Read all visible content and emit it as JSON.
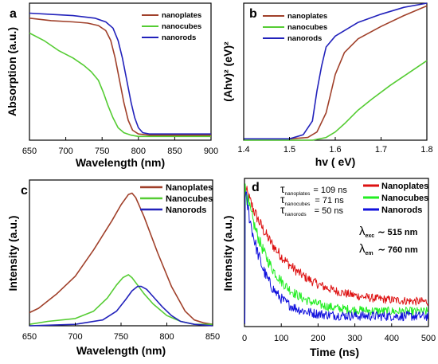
{
  "chart_data": [
    {
      "panel": "a",
      "type": "line",
      "xlabel": "Wavelength (nm)",
      "ylabel": "Absorption (a.u.)",
      "xlim": [
        650,
        900
      ],
      "ylim": [
        0,
        1.1
      ],
      "xticks": [
        "650",
        "700",
        "750",
        "800",
        "850",
        "900"
      ],
      "yticks_shown": false,
      "legend": "top-right",
      "legend_labels": [
        "nanoplates",
        "nanocubes",
        "nanorods"
      ],
      "series": [
        {
          "name": "nanoplates",
          "color": "#a0402a",
          "x": [
            650,
            680,
            710,
            730,
            745,
            755,
            762,
            768,
            774,
            780,
            786,
            792,
            800,
            815,
            840,
            900
          ],
          "y": [
            0.98,
            0.96,
            0.95,
            0.94,
            0.92,
            0.88,
            0.8,
            0.66,
            0.48,
            0.3,
            0.16,
            0.08,
            0.05,
            0.04,
            0.04,
            0.04
          ]
        },
        {
          "name": "nanocubes",
          "color": "#55cc33",
          "x": [
            650,
            670,
            690,
            710,
            725,
            735,
            745,
            752,
            758,
            765,
            772,
            780,
            790,
            800,
            820,
            900
          ],
          "y": [
            0.86,
            0.8,
            0.72,
            0.66,
            0.6,
            0.55,
            0.48,
            0.38,
            0.28,
            0.18,
            0.1,
            0.06,
            0.04,
            0.03,
            0.03,
            0.03
          ]
        },
        {
          "name": "nanorods",
          "color": "#2222bb",
          "x": [
            650,
            680,
            710,
            740,
            755,
            765,
            772,
            778,
            784,
            790,
            795,
            800,
            806,
            815,
            840,
            900
          ],
          "y": [
            1.02,
            1.01,
            1.0,
            0.98,
            0.95,
            0.9,
            0.8,
            0.66,
            0.48,
            0.3,
            0.18,
            0.1,
            0.06,
            0.05,
            0.05,
            0.05
          ]
        }
      ]
    },
    {
      "panel": "b",
      "type": "line",
      "xlabel": "hv ( eV)",
      "ylabel": "(Ahv)² (eV)²",
      "xlim": [
        1.4,
        1.8
      ],
      "ylim": [
        0,
        1.0
      ],
      "xticks": [
        "1.4",
        "1.5",
        "1.6",
        "1.7",
        "1.8"
      ],
      "yticks_shown": false,
      "legend": "top-left",
      "legend_labels": [
        "nanoplates",
        "nanocubes",
        "nanorods"
      ],
      "series": [
        {
          "name": "nanoplates",
          "color": "#a0402a",
          "x": [
            1.4,
            1.5,
            1.54,
            1.56,
            1.58,
            1.59,
            1.6,
            1.62,
            1.65,
            1.7,
            1.75,
            1.8
          ],
          "y": [
            0.01,
            0.01,
            0.02,
            0.06,
            0.2,
            0.34,
            0.48,
            0.64,
            0.74,
            0.83,
            0.91,
            0.98
          ]
        },
        {
          "name": "nanocubes",
          "color": "#55cc33",
          "x": [
            1.4,
            1.55,
            1.58,
            1.6,
            1.62,
            1.65,
            1.68,
            1.72,
            1.76,
            1.8
          ],
          "y": [
            0.0,
            0.0,
            0.02,
            0.06,
            0.12,
            0.22,
            0.3,
            0.4,
            0.49,
            0.58
          ]
        },
        {
          "name": "nanorods",
          "color": "#2222bb",
          "x": [
            1.4,
            1.5,
            1.53,
            1.55,
            1.56,
            1.57,
            1.58,
            1.6,
            1.65,
            1.7,
            1.75,
            1.8
          ],
          "y": [
            0.01,
            0.01,
            0.04,
            0.14,
            0.36,
            0.54,
            0.68,
            0.76,
            0.86,
            0.92,
            0.97,
            1.0
          ]
        }
      ]
    },
    {
      "panel": "c",
      "type": "line",
      "xlabel": "Wavelength (nm)",
      "ylabel": "Intensity (a.u.)",
      "xlim": [
        650,
        850
      ],
      "ylim": [
        0,
        1.0
      ],
      "xticks": [
        "650",
        "700",
        "750",
        "800",
        "850"
      ],
      "yticks_shown": false,
      "legend": "top-right",
      "legend_labels": [
        "Nanoplates",
        "Nanocubes",
        "Nanorods"
      ],
      "series": [
        {
          "name": "Nanoplates",
          "color": "#a0402a",
          "x": [
            650,
            660,
            680,
            700,
            720,
            740,
            750,
            758,
            762,
            766,
            775,
            790,
            805,
            820,
            830,
            840,
            850
          ],
          "y": [
            0.09,
            0.12,
            0.22,
            0.34,
            0.52,
            0.72,
            0.83,
            0.9,
            0.91,
            0.88,
            0.75,
            0.5,
            0.27,
            0.1,
            0.04,
            0.02,
            0.01
          ]
        },
        {
          "name": "Nanocubes",
          "color": "#55cc33",
          "x": [
            650,
            670,
            700,
            720,
            735,
            745,
            752,
            758,
            762,
            768,
            775,
            785,
            800,
            815,
            830,
            850
          ],
          "y": [
            0.01,
            0.03,
            0.05,
            0.1,
            0.19,
            0.28,
            0.33,
            0.35,
            0.33,
            0.28,
            0.22,
            0.15,
            0.07,
            0.03,
            0.01,
            0.01
          ]
        },
        {
          "name": "Nanorods",
          "color": "#2222bb",
          "x": [
            650,
            700,
            730,
            745,
            755,
            762,
            768,
            772,
            778,
            785,
            795,
            805,
            815,
            830,
            850
          ],
          "y": [
            0.0,
            0.01,
            0.04,
            0.1,
            0.18,
            0.24,
            0.27,
            0.27,
            0.25,
            0.2,
            0.13,
            0.07,
            0.03,
            0.01,
            0.0
          ]
        }
      ]
    },
    {
      "panel": "d",
      "type": "line",
      "xlabel": "Time (ns)",
      "ylabel": "Intensity (a.u.)",
      "xlim": [
        0,
        500
      ],
      "ylim": [
        0,
        1.0
      ],
      "xticks": [
        "0",
        "100",
        "200",
        "300",
        "400",
        "500"
      ],
      "yticks_shown": false,
      "legend": "top-right",
      "legend_labels": [
        "Nanoplates",
        "Nanocubes",
        "Nanorods"
      ],
      "annotations": {
        "lifetimes": [
          {
            "symbol": "τ",
            "sub": "nanoplates",
            "value": "= 109 ns"
          },
          {
            "symbol": "τ",
            "sub": "nanocubes",
            "value": "= 71 ns"
          },
          {
            "symbol": "τ",
            "sub": "nanorods",
            "value": "= 50 ns"
          }
        ],
        "excitation": {
          "symbol": "λ",
          "sub": "exc",
          "value": "∼ 515 nm"
        },
        "emission": {
          "symbol": "λ",
          "sub": "em",
          "value": "∼ 760 nm"
        }
      },
      "series": [
        {
          "name": "Nanoplates",
          "color": "#dd1111",
          "tau_ns": 109,
          "offset": 0.16,
          "noise": 0.04
        },
        {
          "name": "Nanocubes",
          "color": "#22ee22",
          "tau_ns": 71,
          "offset": 0.1,
          "noise": 0.045
        },
        {
          "name": "Nanorods",
          "color": "#1111dd",
          "tau_ns": 50,
          "offset": 0.07,
          "noise": 0.05
        }
      ]
    }
  ]
}
